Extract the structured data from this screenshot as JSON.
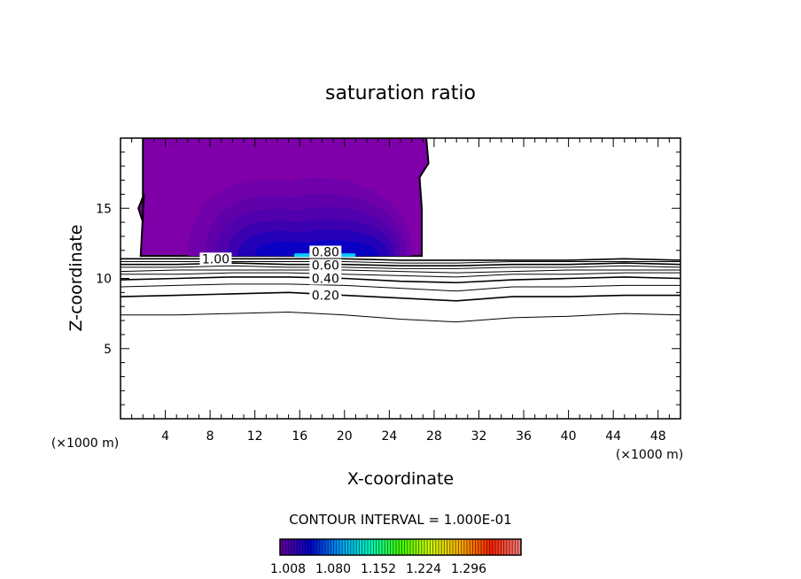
{
  "chart_data": {
    "type": "contour",
    "title": "saturation ratio",
    "xlabel": "X-coordinate",
    "ylabel": "Z-coordinate",
    "x_unit_left": "(×1000 m)",
    "x_unit_right": "(×1000 m)",
    "xlim": [
      0,
      50
    ],
    "ylim": [
      0,
      20
    ],
    "xticks": [
      4,
      8,
      12,
      16,
      20,
      24,
      28,
      32,
      36,
      40,
      44,
      48
    ],
    "yticks": [
      5,
      10,
      15
    ],
    "contour_interval_label": "CONTOUR INTERVAL = 1.000E-01",
    "contour_x": [
      0,
      5,
      10,
      15,
      20,
      25,
      30,
      35,
      40,
      45,
      50
    ],
    "contour_lines": [
      {
        "level": 0.1,
        "z": [
          7.4,
          7.4,
          7.5,
          7.6,
          7.4,
          7.1,
          6.9,
          7.2,
          7.3,
          7.5,
          7.4
        ]
      },
      {
        "level": 0.2,
        "z": [
          8.7,
          8.8,
          8.9,
          9.0,
          8.8,
          8.6,
          8.4,
          8.7,
          8.7,
          8.8,
          8.8
        ],
        "label": "0.20",
        "label_x": 18.3
      },
      {
        "level": 0.3,
        "z": [
          9.4,
          9.5,
          9.6,
          9.6,
          9.5,
          9.3,
          9.1,
          9.4,
          9.4,
          9.5,
          9.5
        ]
      },
      {
        "level": 0.4,
        "z": [
          9.9,
          10.0,
          10.1,
          10.1,
          10.0,
          9.8,
          9.7,
          9.9,
          10.0,
          10.1,
          10.0
        ],
        "label": "0.40",
        "label_x": 18.3
      },
      {
        "level": 0.5,
        "z": [
          10.3,
          10.3,
          10.4,
          10.4,
          10.3,
          10.2,
          10.1,
          10.3,
          10.3,
          10.4,
          10.4
        ]
      },
      {
        "level": 0.6,
        "z": [
          10.5,
          10.6,
          10.6,
          10.6,
          10.6,
          10.5,
          10.4,
          10.5,
          10.6,
          10.6,
          10.6
        ],
        "label": "0.60",
        "label_x": 18.3
      },
      {
        "level": 0.7,
        "z": [
          10.8,
          10.8,
          10.9,
          10.8,
          10.8,
          10.7,
          10.7,
          10.8,
          10.8,
          10.9,
          10.8
        ]
      },
      {
        "level": 0.8,
        "z": [
          11.0,
          11.0,
          11.1,
          11.0,
          11.0,
          10.9,
          10.9,
          11.0,
          11.0,
          11.1,
          11.0
        ],
        "label": "0.80",
        "label_x": 18.3
      },
      {
        "level": 0.9,
        "z": [
          11.2,
          11.2,
          11.2,
          11.2,
          11.2,
          11.1,
          11.1,
          11.2,
          11.2,
          11.2,
          11.2
        ]
      },
      {
        "level": 1.0,
        "z": [
          11.4,
          11.4,
          11.4,
          11.4,
          11.4,
          11.3,
          11.3,
          11.3,
          11.3,
          11.4,
          11.3
        ],
        "label": "1.00",
        "label_x": 8.5
      }
    ],
    "filled_region": {
      "x_range": [
        1.8,
        27.5
      ],
      "z_range": [
        11.6,
        20
      ]
    },
    "fill_colors": [
      "#7f00a8",
      "#7000aa",
      "#6000aa",
      "#5000ac",
      "#3c00b0",
      "#2400b8",
      "#0a00c4",
      "#00c8ff"
    ],
    "colorbar": {
      "labels": [
        "1.008",
        "1.080",
        "1.152",
        "1.224",
        "1.296"
      ],
      "colors": [
        "#6a00a0",
        "#0000d0",
        "#00a0ff",
        "#00ffc0",
        "#40ff00",
        "#d0ff00",
        "#ffb000",
        "#ff2000",
        "#ff8080"
      ]
    }
  }
}
